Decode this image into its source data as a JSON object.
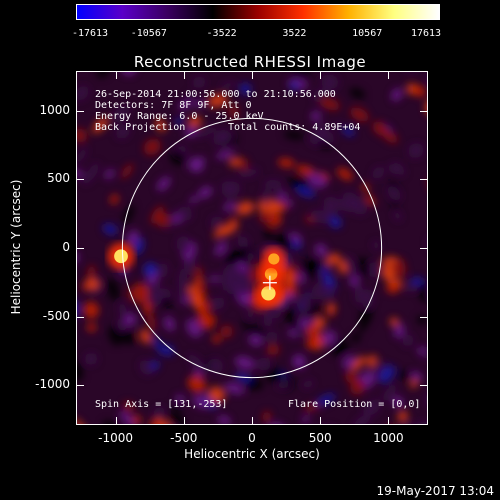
{
  "colorbar": {
    "ticks": [
      "-17613",
      "-10567",
      "-3522",
      "3522",
      "10567",
      "17613"
    ],
    "tick_values": [
      -17613,
      -10567,
      -3522,
      3522,
      10567,
      17613
    ],
    "range": [
      -17613,
      17613
    ],
    "colors": [
      "#0000ff",
      "#5a00c8",
      "#3a0060",
      "#000000",
      "#9a0000",
      "#ff3000",
      "#ffb000",
      "#ffff80",
      "#ffffff"
    ]
  },
  "plot": {
    "title": "Reconstructed RHESSI Image",
    "info": {
      "time": "26-Sep-2014 21:00:56.000 to 21:10:56.000",
      "detectors": "Detectors: 7F 8F 9F, Att 0",
      "energy": "Energy Range: 6.0 - 25.0 keV",
      "method": "Back Projection",
      "counts": "Total counts: 4.89E+04",
      "spin_axis": "Spin Axis = [131,-253]",
      "flare_position": "Flare Position = [0,0]"
    },
    "xlabel": "Heliocentric X (arcsec)",
    "ylabel": "Heliocentric Y (arcsec)",
    "x_ticks": [
      "-1000",
      "-500",
      "0",
      "500",
      "1000"
    ],
    "y_ticks": [
      "1000",
      "500",
      "0",
      "-500",
      "-1000"
    ],
    "x_tick_values": [
      -1000,
      -500,
      0,
      500,
      1000
    ],
    "y_tick_values": [
      1000,
      500,
      0,
      -500,
      -1000
    ],
    "xlim": [
      -1290,
      1290
    ],
    "ylim": [
      -1290,
      1290
    ],
    "solar_radius_arcsec": 950,
    "cross_position": [
      131,
      -253
    ],
    "sources": [
      {
        "x": 120,
        "y": -330,
        "intensity": 1.0
      },
      {
        "x": 140,
        "y": -190,
        "intensity": 0.7
      },
      {
        "x": -960,
        "y": -60,
        "intensity": 0.9
      },
      {
        "x": 160,
        "y": -80,
        "intensity": 0.5
      }
    ]
  },
  "footer": {
    "date": "19-May-2017 13:04"
  }
}
